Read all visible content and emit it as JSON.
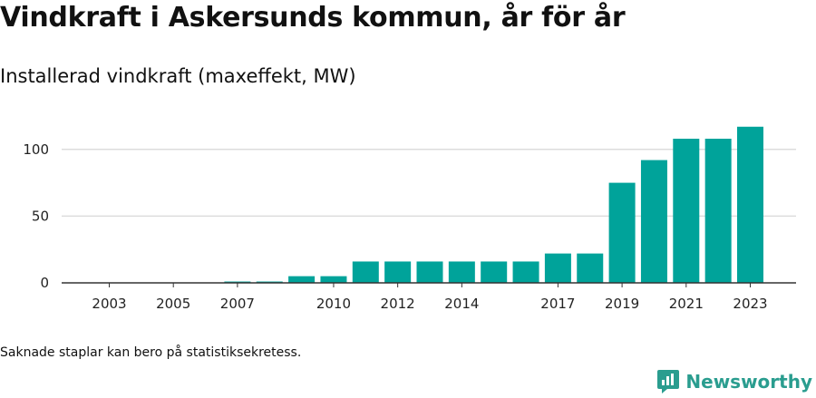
{
  "header": {
    "title": "Vindkraft i Askersunds kommun, år för år",
    "subtitle": "Installerad vindkraft (maxeffekt, MW)"
  },
  "footnote": "Saknade staplar kan bero på statistiksekretess.",
  "brand": {
    "name": "Newsworthy",
    "icon": "bar-chart-speech-bubble-icon",
    "color": "#2a9d8f"
  },
  "colors": {
    "bar": "#00a39a",
    "grid": "#dddddd",
    "axis": "#333333"
  },
  "chart_data": {
    "type": "bar",
    "title": "Vindkraft i Askersunds kommun, år för år",
    "subtitle": "Installerad vindkraft (maxeffekt, MW)",
    "categories": [
      "2003",
      "2004",
      "2005",
      "2006",
      "2007",
      "2008",
      "2009",
      "2010",
      "2011",
      "2012",
      "2013",
      "2014",
      "2015",
      "2016",
      "2017",
      "2018",
      "2019",
      "2020",
      "2021",
      "2022",
      "2023"
    ],
    "values": [
      0,
      0,
      0,
      0,
      1,
      1,
      5,
      5,
      16,
      16,
      16,
      16,
      16,
      16,
      22,
      22,
      75,
      92,
      108,
      108,
      117
    ],
    "x_tick_labels": [
      "2003",
      "2005",
      "2007",
      "2010",
      "2012",
      "2014",
      "2017",
      "2019",
      "2021",
      "2023"
    ],
    "y_ticks": [
      0,
      50,
      100
    ],
    "ylim": [
      0,
      125
    ],
    "grid": true,
    "xlabel": "",
    "ylabel": ""
  }
}
